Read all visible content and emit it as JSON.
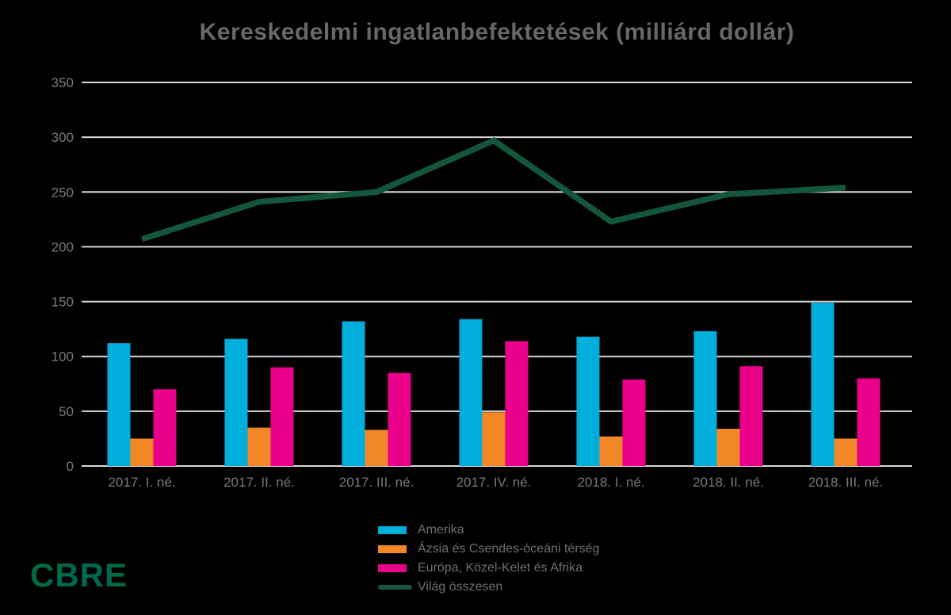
{
  "chart_data": {
    "type": "bar+line",
    "title": "Kereskedelmi ingatlanbefektetések (milliárd dollár)",
    "categories": [
      "2017. I. né.",
      "2017. II. né.",
      "2017. III. né.",
      "2017. IV. né.",
      "2018. I. né.",
      "2018. II. né.",
      "2018. III. né."
    ],
    "series": [
      {
        "name": "Amerika",
        "type": "bar",
        "color": "#00AEDC",
        "values": [
          112,
          116,
          132,
          134,
          118,
          123,
          149
        ]
      },
      {
        "name": "Ázsia és Csendes-óceáni térség",
        "type": "bar",
        "color": "#F28825",
        "values": [
          25,
          35,
          33,
          49,
          27,
          34,
          25
        ]
      },
      {
        "name": "Európa, Közel-Kelet és Afrika",
        "type": "bar",
        "color": "#EB008C",
        "values": [
          70,
          90,
          85,
          114,
          79,
          91,
          80
        ]
      },
      {
        "name": "Világ összesen",
        "type": "line",
        "color": "#14563C",
        "values": [
          207,
          241,
          250,
          297,
          223,
          248,
          254
        ]
      }
    ],
    "y_ticks": [
      0,
      50,
      100,
      150,
      200,
      250,
      300,
      350
    ],
    "ylim": [
      0,
      350
    ],
    "xlabel": "",
    "ylabel": "",
    "grid": true,
    "legend_position": "bottom-center"
  },
  "footer": {
    "logo_text": "CBRE"
  },
  "colors": {
    "background": "#000000",
    "gridline": "#D7D7D7",
    "axis_text": "#77787B",
    "title_text": "#67686B",
    "legend_text": "#6E6F72",
    "logo_green": "#00694B"
  }
}
